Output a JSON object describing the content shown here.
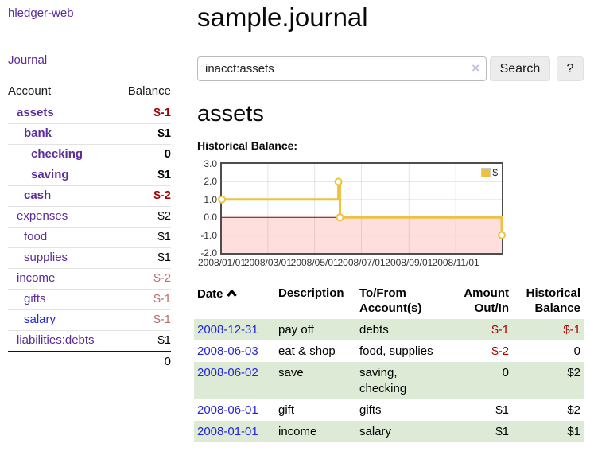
{
  "app": {
    "brand": "hledger-web",
    "journal_label": "Journal"
  },
  "sidebar": {
    "header": {
      "account": "Account",
      "balance": "Balance"
    },
    "accounts": [
      {
        "label": "assets",
        "level": 1,
        "bold": true,
        "link": "purple",
        "value": "$-1",
        "tone": "neg"
      },
      {
        "label": "bank",
        "level": 2,
        "bold": true,
        "link": "purple",
        "value": "$1",
        "tone": "pos"
      },
      {
        "label": "checking",
        "level": 3,
        "bold": true,
        "link": "purple",
        "value": "0",
        "tone": "pos"
      },
      {
        "label": "saving",
        "level": 3,
        "bold": true,
        "link": "purple",
        "value": "$1",
        "tone": "pos"
      },
      {
        "label": "cash",
        "level": 2,
        "bold": true,
        "link": "purple",
        "value": "$-2",
        "tone": "neg"
      },
      {
        "label": "expenses",
        "level": 1,
        "bold": false,
        "link": "purple",
        "value": "$2",
        "tone": "pos"
      },
      {
        "label": "food",
        "level": 2,
        "bold": false,
        "link": "purple",
        "value": "$1",
        "tone": "pos"
      },
      {
        "label": "supplies",
        "level": 2,
        "bold": false,
        "link": "purple",
        "value": "$1",
        "tone": "pos"
      },
      {
        "label": "income",
        "level": 1,
        "bold": false,
        "link": "purple",
        "value": "$-2",
        "tone": "neg-soft"
      },
      {
        "label": "gifts",
        "level": 2,
        "bold": false,
        "link": "purple",
        "value": "$-1",
        "tone": "neg-soft"
      },
      {
        "label": "salary",
        "level": 2,
        "bold": false,
        "link": "blue",
        "value": "$-1",
        "tone": "neg-soft"
      },
      {
        "label": "liabilities:debts",
        "level": 1,
        "bold": false,
        "link": "purple",
        "value": "$1",
        "tone": "pos"
      }
    ],
    "total": "0"
  },
  "main": {
    "title": "sample.journal",
    "search": {
      "value": "inacct:assets",
      "clear_icon": "×",
      "button_label": "Search",
      "help_label": "?"
    },
    "account_heading": "assets",
    "chart_label": "Historical Balance:"
  },
  "chart_data": {
    "type": "line",
    "step": true,
    "title": "Historical Balance:",
    "x_start": "2008-01-01",
    "x_end": "2008-12-31",
    "ylim": [
      -2,
      3
    ],
    "yticks": [
      {
        "label": "3.0",
        "v": 3
      },
      {
        "label": "2.0",
        "v": 2
      },
      {
        "label": "1.0",
        "v": 1
      },
      {
        "label": "0.0",
        "v": 0
      },
      {
        "label": "-1.0",
        "v": -1
      },
      {
        "label": "-2.0",
        "v": -2
      }
    ],
    "xticks": [
      {
        "label": "2008/01/01",
        "date": "2008-01-01"
      },
      {
        "label": "2008/03/01",
        "date": "2008-03-01"
      },
      {
        "label": "2008/05/01",
        "date": "2008-05-01"
      },
      {
        "label": "2008/07/01",
        "date": "2008-07-01"
      },
      {
        "label": "2008/09/01",
        "date": "2008-09-01"
      },
      {
        "label": "2008/11/01",
        "date": "2008-11-01"
      }
    ],
    "series": [
      {
        "name": "$",
        "color": "#EDC240",
        "points": [
          [
            "2008-01-01",
            1
          ],
          [
            "2008-06-01",
            2
          ],
          [
            "2008-06-03",
            0
          ],
          [
            "2008-12-31",
            -1
          ]
        ]
      }
    ],
    "grid": true,
    "legend_position": "top-right",
    "zero_line_color": "#7f0000",
    "negative_region_color": "rgba(255,0,0,0.13)",
    "grid_color": "rgba(0,0,0,0.10)"
  },
  "table": {
    "headers": {
      "date": "Date",
      "sort_icon": "chevron-up",
      "description": "Description",
      "accounts": "To/From Account(s)",
      "amount": "Amount Out/In",
      "balance": "Historical Balance"
    },
    "rows": [
      {
        "date": "2008-12-31",
        "description": "pay off",
        "accounts": "debts",
        "amount": "$-1",
        "amount_neg": true,
        "balance": "$-1",
        "balance_neg": true
      },
      {
        "date": "2008-06-03",
        "description": "eat & shop",
        "accounts": "food, supplies",
        "amount": "$-2",
        "amount_neg": true,
        "balance": "0",
        "balance_neg": false
      },
      {
        "date": "2008-06-02",
        "description": "save",
        "accounts": "saving, checking",
        "amount": "0",
        "amount_neg": false,
        "balance": "$2",
        "balance_neg": false
      },
      {
        "date": "2008-06-01",
        "description": "gift",
        "accounts": "gifts",
        "amount": "$1",
        "amount_neg": false,
        "balance": "$2",
        "balance_neg": false
      },
      {
        "date": "2008-01-01",
        "description": "income",
        "accounts": "salary",
        "amount": "$1",
        "amount_neg": false,
        "balance": "$1",
        "balance_neg": false
      }
    ]
  },
  "colors": {
    "accent_purple": "#5b2c9a",
    "link_blue": "#2326d8",
    "negative_red": "#a40000",
    "soft_negative_red": "#bd6c6c",
    "row_stripe_green": "#dcead6",
    "series_gold": "#EDC240"
  }
}
